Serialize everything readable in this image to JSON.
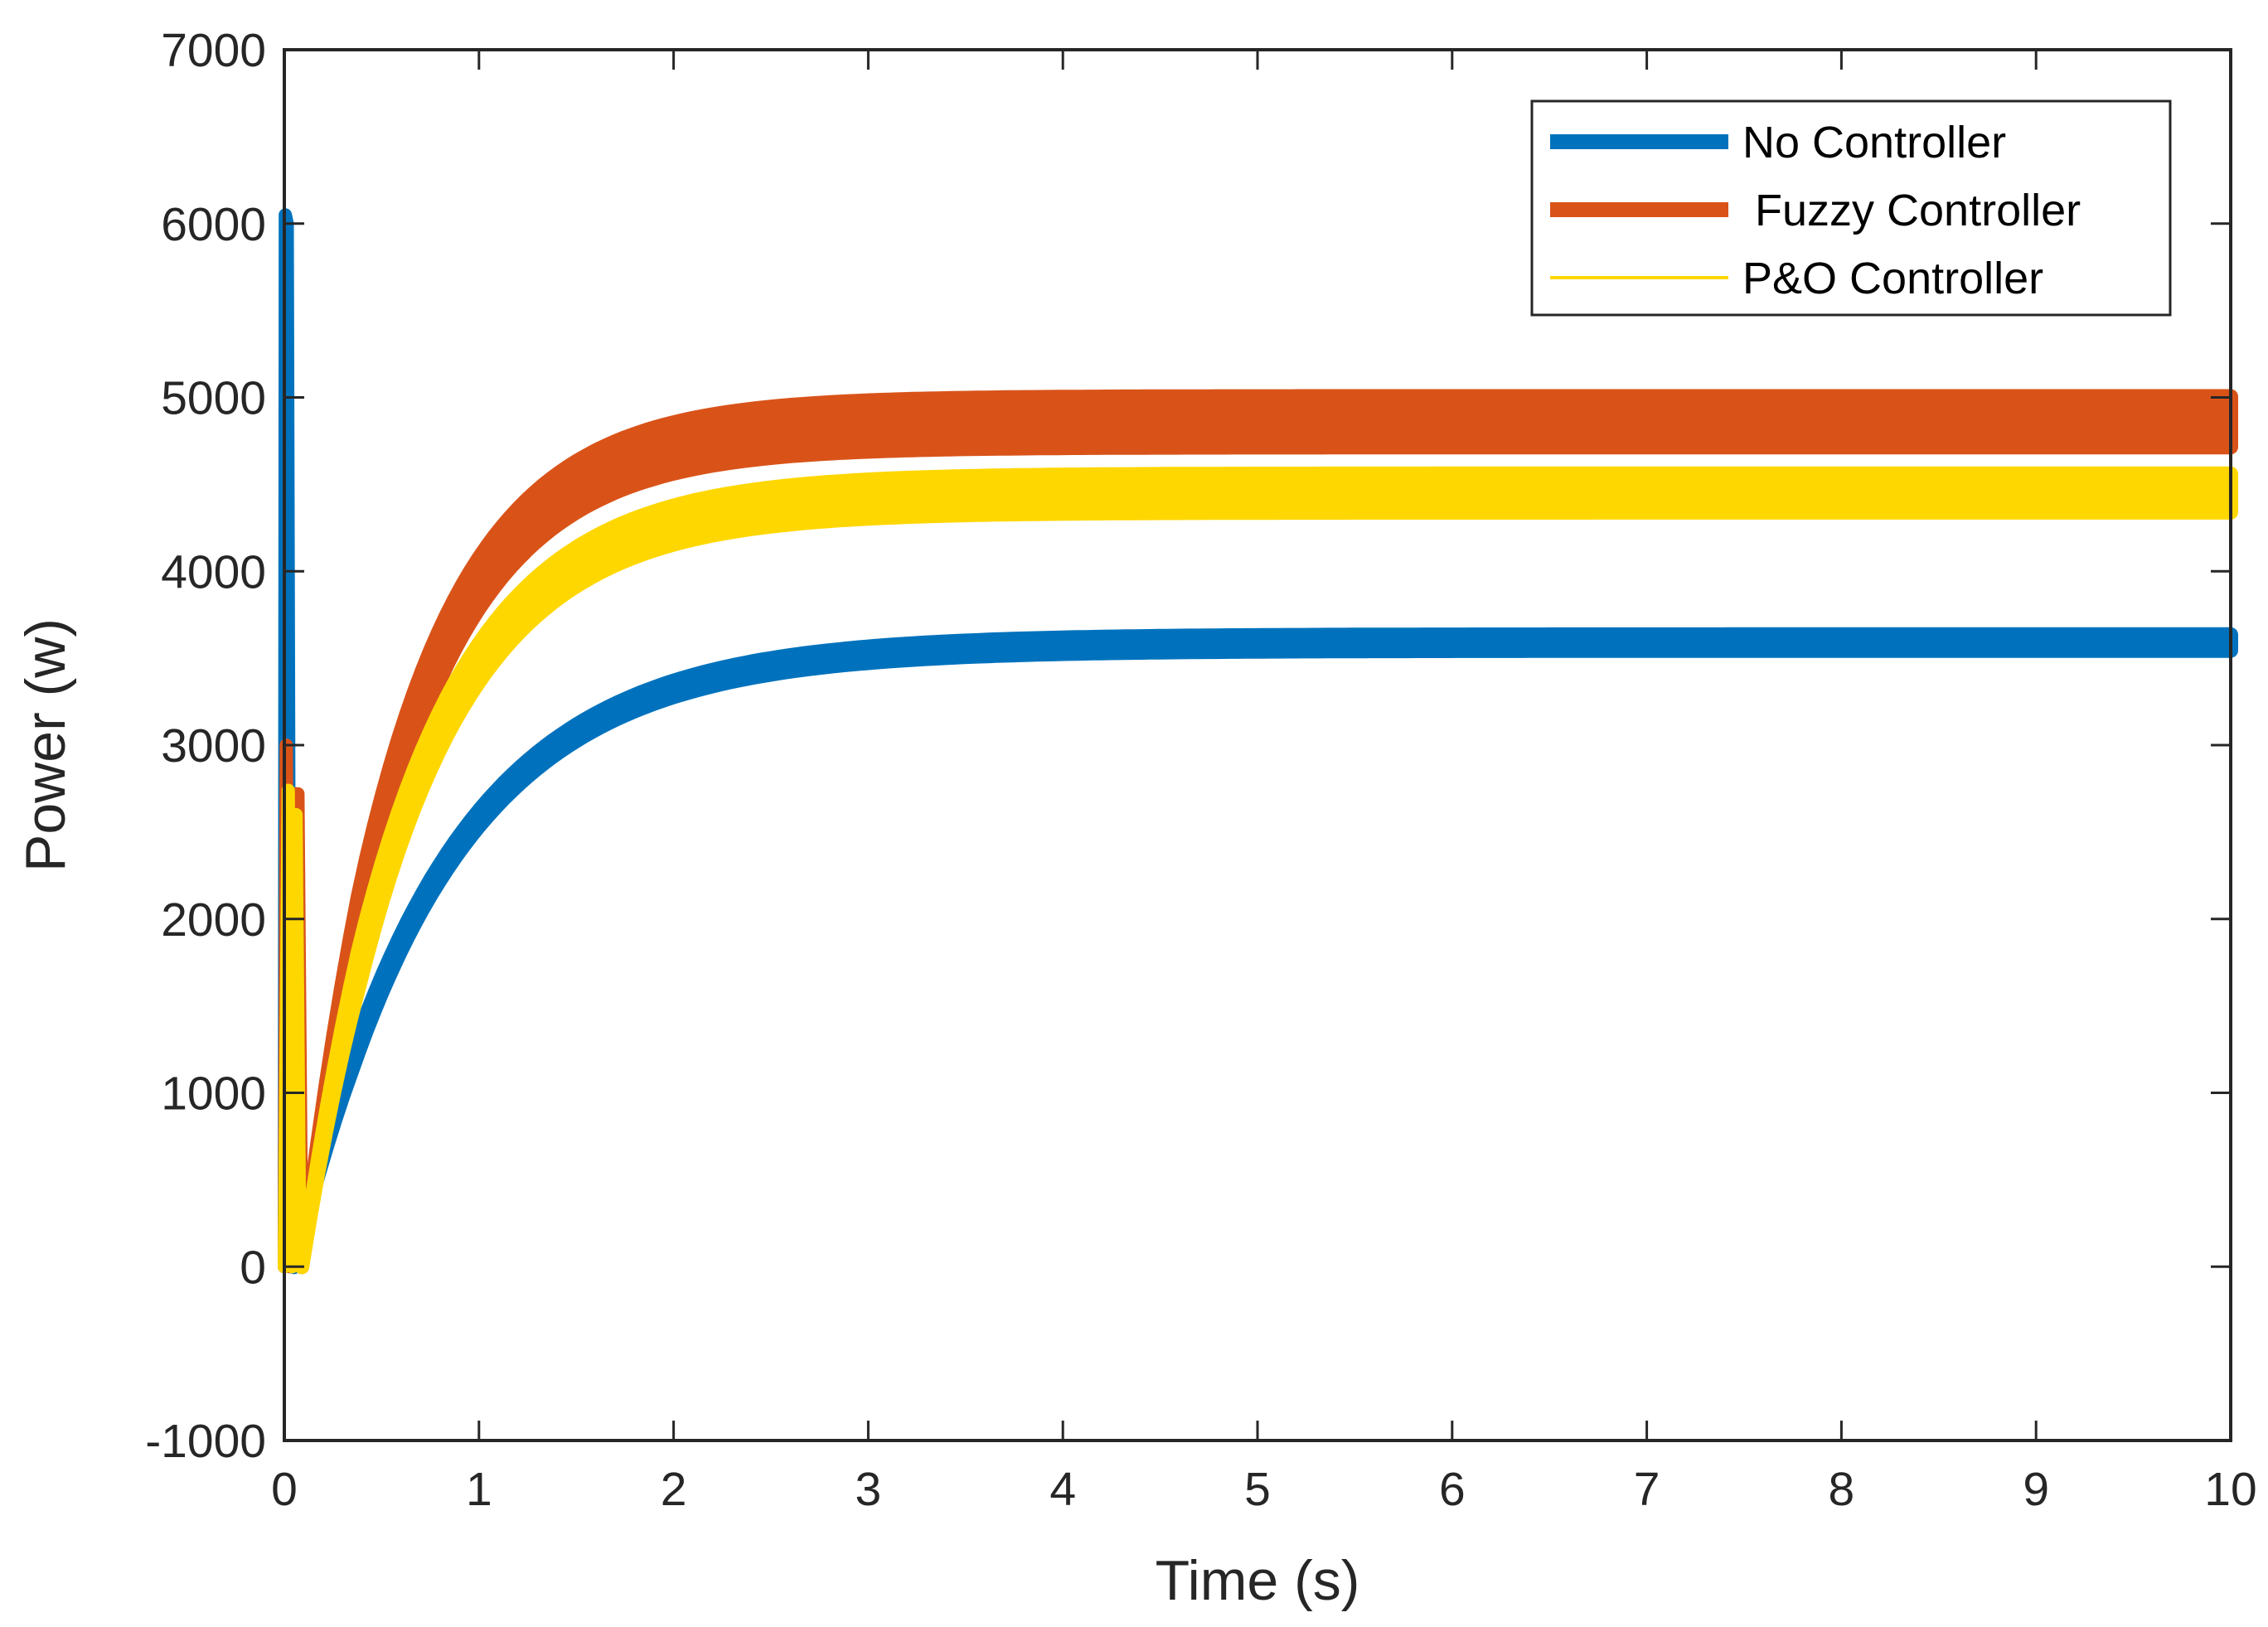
{
  "chart_data": {
    "type": "line",
    "title": "",
    "xlabel": "Time (s)",
    "ylabel": "Power (w)",
    "xlim": [
      0,
      10
    ],
    "ylim": [
      -1000,
      7000
    ],
    "xticks": [
      0,
      1,
      2,
      3,
      4,
      5,
      6,
      7,
      8,
      9,
      10
    ],
    "yticks": [
      -1000,
      0,
      1000,
      2000,
      3000,
      4000,
      5000,
      6000,
      7000
    ],
    "xtick_labels": [
      "0",
      "1",
      "2",
      "3",
      "4",
      "5",
      "6",
      "7",
      "8",
      "9",
      "10"
    ],
    "ytick_labels": [
      "-1000",
      "0",
      "1000",
      "2000",
      "3000",
      "4000",
      "5000",
      "6000",
      "7000"
    ],
    "grid": false,
    "legend_position": "top-right",
    "series": [
      {
        "name": "No Controller",
        "legend_label": "No Controller",
        "color": "#0072BD",
        "transient": [
          [
            0,
            0
          ],
          [
            0.005,
            6050
          ],
          [
            0.015,
            6000
          ],
          [
            0.03,
            0
          ],
          [
            0.05,
            0
          ]
        ],
        "settle_start": 0.05,
        "steady_state": 3590,
        "time_constant": 0.75,
        "band_half_width": 45
      },
      {
        "name": "Fuzzy Controller",
        "legend_label": " Fuzzy Controller",
        "color": "#D95319",
        "transient": [
          [
            0,
            0
          ],
          [
            0.01,
            3000
          ],
          [
            0.03,
            0
          ],
          [
            0.05,
            2720
          ],
          [
            0.07,
            2720
          ],
          [
            0.09,
            0
          ]
        ],
        "settle_start": 0.09,
        "steady_state": 4860,
        "time_constant": 0.55,
        "band_half_width": 145
      },
      {
        "name": "P&O Controller",
        "legend_label": "P&O Controller",
        "color": "#FFD700",
        "transient": [
          [
            0,
            0
          ],
          [
            0.02,
            2740
          ],
          [
            0.04,
            0
          ],
          [
            0.06,
            2600
          ],
          [
            0.08,
            0
          ],
          [
            0.09,
            0
          ]
        ],
        "settle_start": 0.09,
        "steady_state": 4450,
        "time_constant": 0.6,
        "band_half_width": 110
      }
    ]
  }
}
